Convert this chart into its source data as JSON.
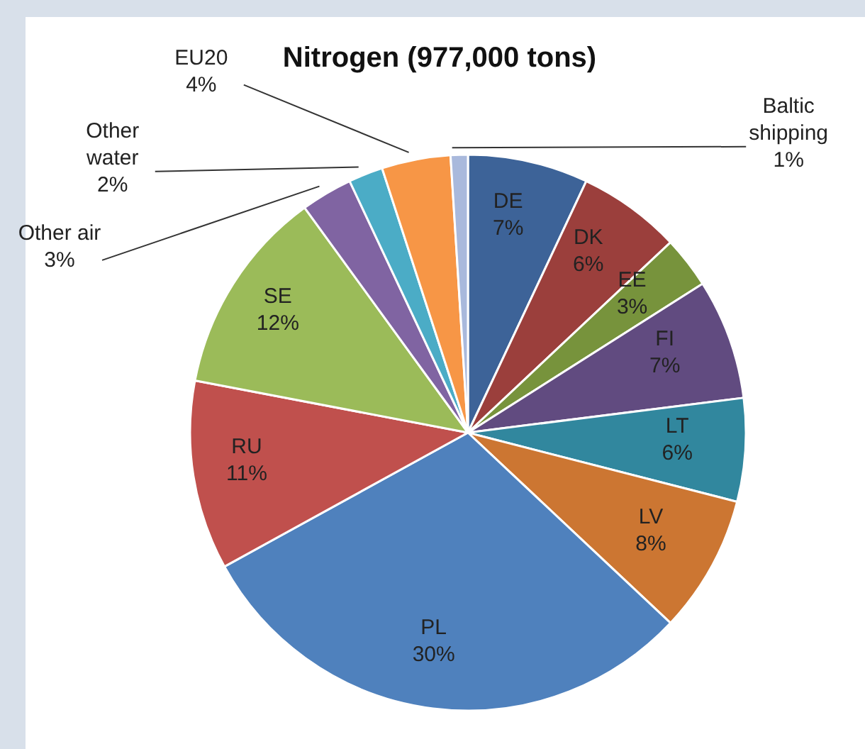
{
  "chart_data": {
    "type": "pie",
    "title": "Nitrogen (977,000 tons)",
    "categories": [
      "DE",
      "DK",
      "EE",
      "FI",
      "LT",
      "LV",
      "PL",
      "RU",
      "SE",
      "Other air",
      "Other water",
      "EU20",
      "Baltic shipping"
    ],
    "values": [
      7,
      6,
      3,
      7,
      6,
      8,
      30,
      11,
      12,
      3,
      2,
      4,
      1
    ],
    "colors": [
      "#3d6398",
      "#9b3f3c",
      "#77933c",
      "#614b80",
      "#31879e",
      "#cc7632",
      "#4f81bd",
      "#c0504d",
      "#9bbb59",
      "#8064a2",
      "#4bacc6",
      "#f79646",
      "#a9b9dc"
    ],
    "value_labels": [
      "7%",
      "6%",
      "3%",
      "7%",
      "6%",
      "8%",
      "30%",
      "11%",
      "12%",
      "3%",
      "2%",
      "4%",
      "1%"
    ]
  }
}
